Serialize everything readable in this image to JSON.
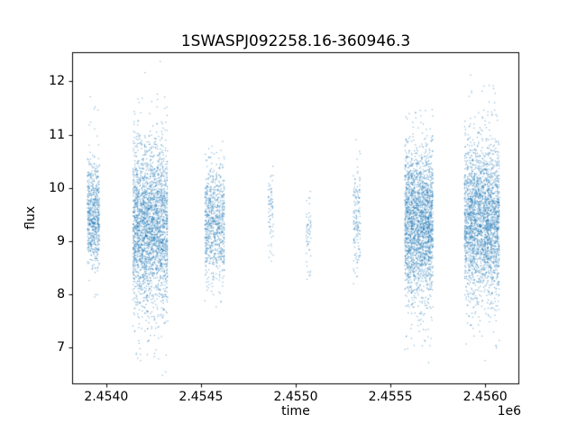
{
  "figure": {
    "background": "#ffffff",
    "frame_color": "#000000"
  },
  "chart_data": {
    "type": "scatter",
    "title": "1SWASPJ092258.16-360946.3",
    "xlabel": "time",
    "ylabel": "flux",
    "x_offset_label": "1e6",
    "grid": false,
    "legend": null,
    "xlim": [
      2453820,
      2456180
    ],
    "ylim": [
      6.3,
      12.55
    ],
    "xticks": [
      {
        "value": 2454000,
        "label": "2.4540"
      },
      {
        "value": 2454500,
        "label": "2.4545"
      },
      {
        "value": 2455000,
        "label": "2.4550"
      },
      {
        "value": 2455500,
        "label": "2.4555"
      },
      {
        "value": 2456000,
        "label": "2.4560"
      }
    ],
    "yticks": [
      {
        "value": 7,
        "label": "7"
      },
      {
        "value": 8,
        "label": "8"
      },
      {
        "value": 9,
        "label": "9"
      },
      {
        "value": 10,
        "label": "10"
      },
      {
        "value": 11,
        "label": "11"
      },
      {
        "value": 12,
        "label": "12"
      }
    ],
    "marker_color": "#1f77b4",
    "marker_alpha": 0.55,
    "marker_size": 1.2,
    "random_seed": 42,
    "series": [
      {
        "name": "flux",
        "clusters": [
          {
            "t_min": 2453900,
            "t_max": 2453965,
            "n_points": 650,
            "n_nights": 10,
            "flux_mean": 9.45,
            "flux_std": 0.5,
            "flux_min": 7.75,
            "flux_max": 11.95,
            "tail_frac": 0.07,
            "tail_scale": 2.2
          },
          {
            "t_min": 2454140,
            "t_max": 2454325,
            "n_points": 2600,
            "n_nights": 25,
            "flux_mean": 9.3,
            "flux_std": 0.75,
            "flux_min": 6.45,
            "flux_max": 12.4,
            "tail_frac": 0.1,
            "tail_scale": 2.0
          },
          {
            "t_min": 2454520,
            "t_max": 2454625,
            "n_points": 800,
            "n_nights": 13,
            "flux_mean": 9.35,
            "flux_std": 0.55,
            "flux_min": 7.6,
            "flux_max": 11.1,
            "tail_frac": 0.07,
            "tail_scale": 2.0
          },
          {
            "t_min": 2454855,
            "t_max": 2454882,
            "n_points": 70,
            "n_nights": 4,
            "flux_mean": 9.5,
            "flux_std": 0.5,
            "flux_min": 8.55,
            "flux_max": 10.72,
            "tail_frac": 0.05,
            "tail_scale": 1.5
          },
          {
            "t_min": 2455055,
            "t_max": 2455082,
            "n_points": 55,
            "n_nights": 4,
            "flux_mean": 9.2,
            "flux_std": 0.42,
            "flux_min": 8.2,
            "flux_max": 10.2,
            "tail_frac": 0.05,
            "tail_scale": 1.5
          },
          {
            "t_min": 2455303,
            "t_max": 2455342,
            "n_points": 150,
            "n_nights": 6,
            "flux_mean": 9.4,
            "flux_std": 0.55,
            "flux_min": 8.1,
            "flux_max": 10.95,
            "tail_frac": 0.06,
            "tail_scale": 1.8
          },
          {
            "t_min": 2455575,
            "t_max": 2455725,
            "n_points": 2300,
            "n_nights": 22,
            "flux_mean": 9.3,
            "flux_std": 0.7,
            "flux_min": 6.6,
            "flux_max": 11.5,
            "tail_frac": 0.09,
            "tail_scale": 2.0
          },
          {
            "t_min": 2455890,
            "t_max": 2456075,
            "n_points": 2600,
            "n_nights": 26,
            "flux_mean": 9.4,
            "flux_std": 0.7,
            "flux_min": 6.7,
            "flux_max": 12.3,
            "tail_frac": 0.09,
            "tail_scale": 2.0
          }
        ]
      }
    ]
  }
}
